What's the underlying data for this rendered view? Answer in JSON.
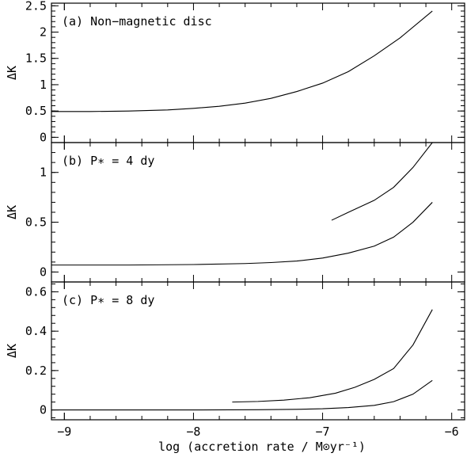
{
  "chart_data": {
    "type": "line",
    "xlabel": "log (accretion rate / M⊙yr⁻¹)",
    "xlim": [
      -9.1,
      -5.9
    ],
    "x_ticks": [
      -9,
      -8,
      -7,
      -6
    ],
    "x_tick_labels": [
      "−9",
      "−8",
      "−7",
      "−6"
    ],
    "grid": false,
    "panels": [
      {
        "label": "(a) Non−magnetic disc",
        "ylabel": "ΔK",
        "ylim": [
          -0.1,
          2.55
        ],
        "y_ticks": [
          0,
          0.5,
          1,
          1.5,
          2,
          2.5
        ],
        "y_tick_labels": [
          "0",
          "0.5",
          "1",
          "1.5",
          "2",
          "2.5"
        ],
        "series": [
          {
            "x": [
              -9.1,
              -8.8,
              -8.5,
              -8.2,
              -8.0,
              -7.8,
              -7.6,
              -7.4,
              -7.2,
              -7.0,
              -6.8,
              -6.6,
              -6.4,
              -6.15
            ],
            "y": [
              0.49,
              0.49,
              0.5,
              0.52,
              0.55,
              0.59,
              0.65,
              0.74,
              0.87,
              1.03,
              1.25,
              1.55,
              1.89,
              2.4
            ]
          }
        ]
      },
      {
        "label": "(b) P∗ = 4 dy",
        "ylabel": "ΔK",
        "ylim": [
          -0.1,
          1.3
        ],
        "y_ticks": [
          0,
          0.5,
          1
        ],
        "y_tick_labels": [
          "0",
          "0.5",
          "1"
        ],
        "series": [
          {
            "x": [
              -9.1,
              -8.5,
              -8.0,
              -7.6,
              -7.4,
              -7.2,
              -7.0,
              -6.8,
              -6.6,
              -6.45,
              -6.3,
              -6.15
            ],
            "y": [
              0.07,
              0.07,
              0.075,
              0.085,
              0.095,
              0.11,
              0.14,
              0.19,
              0.26,
              0.35,
              0.5,
              0.7
            ]
          },
          {
            "x": [
              -6.93,
              -6.8,
              -6.6,
              -6.45,
              -6.3,
              -6.15
            ],
            "y": [
              0.52,
              0.6,
              0.72,
              0.85,
              1.05,
              1.3
            ]
          }
        ]
      },
      {
        "label": "(c) P∗ = 8 dy",
        "ylabel": "ΔK",
        "ylim": [
          -0.05,
          0.65
        ],
        "y_ticks": [
          0,
          0.2,
          0.4,
          0.6
        ],
        "y_tick_labels": [
          "0",
          "0.2",
          "0.4",
          "0.6"
        ],
        "series": [
          {
            "x": [
              -9.1,
              -8.5,
              -8.0,
              -7.5,
              -7.2,
              -7.0,
              -6.8,
              -6.6,
              -6.45,
              -6.3,
              -6.15
            ],
            "y": [
              0.0,
              0.0,
              0.0,
              0.001,
              0.003,
              0.006,
              0.012,
              0.023,
              0.042,
              0.08,
              0.15
            ]
          },
          {
            "x": [
              -7.7,
              -7.5,
              -7.3,
              -7.1,
              -6.9,
              -6.75,
              -6.6,
              -6.45,
              -6.3,
              -6.15
            ],
            "y": [
              0.04,
              0.043,
              0.05,
              0.062,
              0.085,
              0.115,
              0.155,
              0.21,
              0.33,
              0.51
            ]
          }
        ]
      }
    ]
  }
}
